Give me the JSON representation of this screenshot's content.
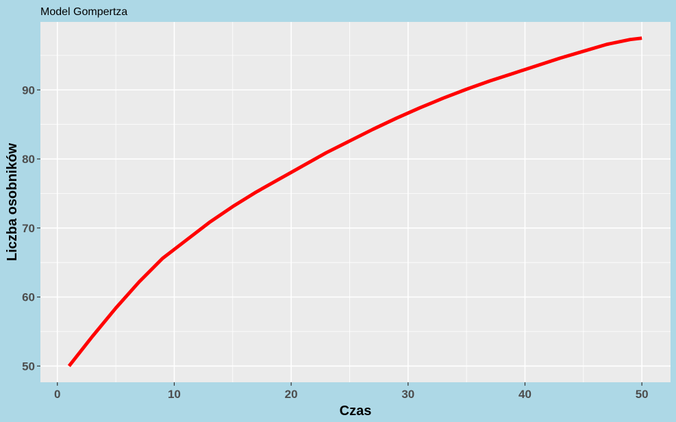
{
  "chart_data": {
    "type": "line",
    "title": "Model Gompertza",
    "xlabel": "Czas",
    "ylabel": "Liczba osobników",
    "xlim": [
      -1.45,
      52.45
    ],
    "ylim": [
      47.65,
      99.85
    ],
    "x_ticks": [
      0,
      10,
      20,
      30,
      40,
      50
    ],
    "y_ticks": [
      50,
      60,
      70,
      80,
      90
    ],
    "grid": true,
    "colors": {
      "background": "#add8e6",
      "panel": "#ebebeb",
      "grid": "#ffffff",
      "line": "#ff0000"
    },
    "series": [
      {
        "x": [
          1,
          3,
          5,
          7,
          9,
          11,
          13,
          15,
          17,
          19,
          21,
          23,
          25,
          27,
          29,
          31,
          33,
          35,
          37,
          39,
          41,
          43,
          45,
          47,
          49,
          50
        ],
        "values": [
          50.0,
          54.3,
          58.4,
          62.2,
          65.6,
          68.2,
          70.8,
          73.1,
          75.2,
          77.1,
          79.0,
          80.9,
          82.6,
          84.3,
          85.9,
          87.4,
          88.8,
          90.1,
          91.3,
          92.4,
          93.5,
          94.6,
          95.6,
          96.6,
          97.3,
          97.5
        ]
      }
    ]
  }
}
